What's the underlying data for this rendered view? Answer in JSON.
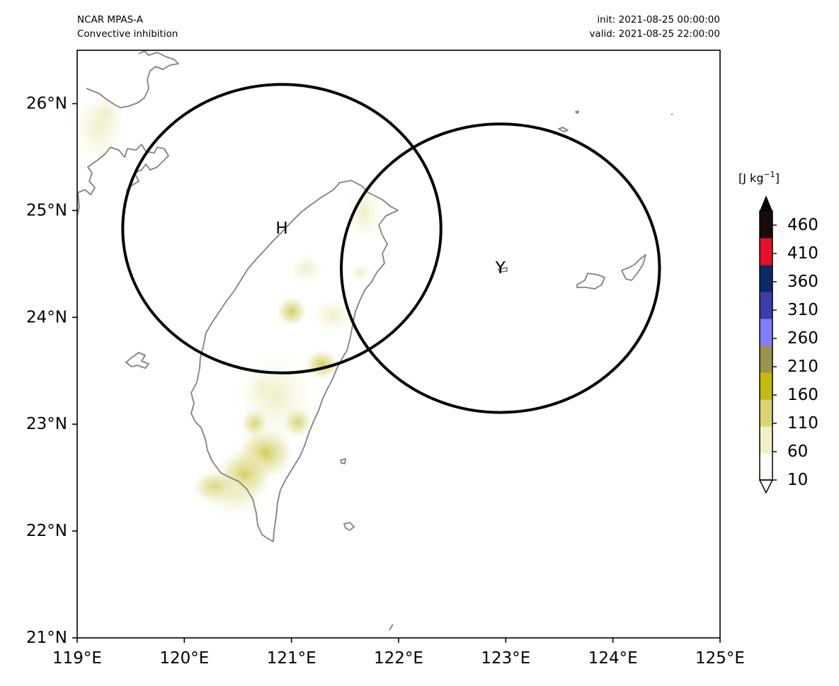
{
  "header": {
    "model": "NCAR MPAS-A",
    "field": "Convective inhibition",
    "init": "init: 2021-08-25 00:00:00",
    "valid": "valid: 2021-08-25 22:00:00"
  },
  "map": {
    "lon_range": [
      119,
      125
    ],
    "lat_range": [
      21,
      26.5
    ],
    "x_ticks": [
      "119°E",
      "120°E",
      "121°E",
      "122°E",
      "123°E",
      "124°E",
      "125°E"
    ],
    "y_ticks": [
      "21°N",
      "22°N",
      "23°N",
      "24°N",
      "25°N",
      "26°N"
    ],
    "coastline_color": "#808080",
    "circles": [
      {
        "label": "H",
        "lon": 120.91,
        "lat": 24.83,
        "radius_deg": 1.35
      },
      {
        "label": "Y",
        "lon": 122.95,
        "lat": 24.46,
        "radius_deg": 1.35
      }
    ]
  },
  "colorbar": {
    "unit_base": "[J kg",
    "unit_exp": "−1",
    "unit_close": "]",
    "tick_labels": [
      "10",
      "60",
      "110",
      "160",
      "210",
      "260",
      "310",
      "360",
      "410",
      "460"
    ],
    "extend": "both",
    "colors": [
      "#fffef6",
      "#f2f0c4",
      "#d8d572",
      "#c2bb10",
      "#9a9450",
      "#8080ff",
      "#3c3ca8",
      "#0c2a66",
      "#e8102a",
      "#1a0a0a"
    ]
  }
}
